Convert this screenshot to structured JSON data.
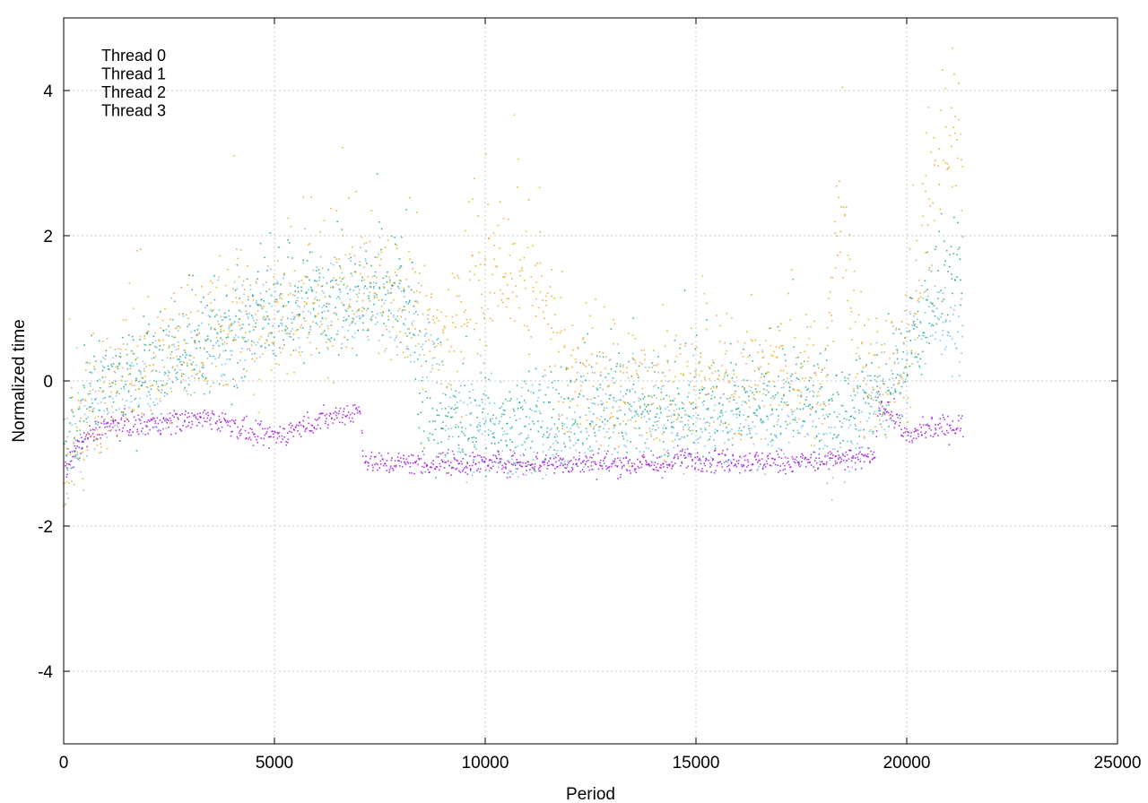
{
  "chart_data": {
    "type": "scatter",
    "title": "",
    "xlabel": "Period",
    "ylabel": "Normalized time",
    "xlim": [
      0,
      25000
    ],
    "ylim": [
      -5,
      5
    ],
    "xticks": [
      0,
      5000,
      10000,
      15000,
      20000,
      25000
    ],
    "yticks": [
      -4,
      -2,
      0,
      2,
      4
    ],
    "xtick_labels": [
      "0",
      "5000",
      "10000",
      "15000",
      "20000",
      "25000"
    ],
    "ytick_labels": [
      "-4",
      "-2",
      "0",
      "2",
      "4"
    ],
    "grid": true,
    "legend_position": "top-left",
    "series": [
      {
        "name": "Thread 0",
        "color": "#9400d3",
        "trend_x": [
          0,
          300,
          900,
          1500,
          2500,
          3500,
          4000,
          4500,
          5000,
          5700,
          6500,
          7000,
          7100,
          7200,
          8000,
          9000,
          10000,
          12000,
          14400,
          14500,
          16000,
          18000,
          19200,
          19300,
          19700,
          20000,
          20200,
          20500,
          21300
        ],
        "trend_y": [
          -1.25,
          -0.9,
          -0.6,
          -0.6,
          -0.55,
          -0.5,
          -0.6,
          -0.75,
          -0.75,
          -0.6,
          -0.45,
          -0.4,
          -1.05,
          -1.12,
          -1.12,
          -1.13,
          -1.12,
          -1.12,
          -1.15,
          -1.05,
          -1.1,
          -1.1,
          -1.05,
          -0.25,
          -0.5,
          -0.8,
          -0.7,
          -0.65,
          -0.6
        ]
      },
      {
        "name": "Thread 1",
        "color": "#009e73",
        "trend_x": [
          0,
          500,
          1000,
          2000,
          3000,
          4000,
          5000,
          6000,
          7000,
          7800,
          8300,
          8400,
          9000,
          10000,
          11500,
          12500,
          14000,
          15000,
          16000,
          17000,
          18000,
          18500,
          19000,
          19500,
          20000,
          20500,
          21000,
          21300
        ],
        "trend_y": [
          -1.1,
          -0.3,
          0.0,
          0.2,
          0.4,
          0.6,
          0.9,
          1.1,
          1.2,
          1.3,
          1.2,
          -0.6,
          -0.7,
          -0.6,
          -0.6,
          -0.4,
          -0.4,
          -0.4,
          -0.3,
          -0.2,
          -0.3,
          -0.4,
          -0.1,
          -0.2,
          0.2,
          1.0,
          1.5,
          1.6
        ]
      },
      {
        "name": "Thread 2",
        "color": "#56b4e9",
        "trend_x": [
          0,
          500,
          1000,
          2000,
          3000,
          4000,
          5000,
          6000,
          7000,
          8000,
          8900,
          9000,
          10000,
          11000,
          12000,
          13000,
          14000,
          15000,
          16000,
          17000,
          18000,
          18500,
          19000,
          19500,
          20000,
          20500,
          21000,
          21300
        ],
        "trend_y": [
          -1.15,
          -0.6,
          -0.3,
          0.0,
          0.3,
          0.6,
          0.9,
          1.0,
          0.9,
          0.8,
          0.4,
          -0.6,
          -0.7,
          -0.7,
          -0.7,
          -0.5,
          -0.6,
          -0.6,
          -0.6,
          -0.5,
          -0.6,
          -0.8,
          -0.3,
          -0.2,
          0.5,
          0.8,
          0.6,
          0.5
        ]
      },
      {
        "name": "Thread 3",
        "color": "#e69f00",
        "trend_x": [
          0,
          500,
          1000,
          2000,
          3000,
          4000,
          5000,
          6000,
          7000,
          8000,
          9000,
          9500,
          10000,
          10500,
          11000,
          11500,
          12000,
          13000,
          14000,
          15000,
          16000,
          17000,
          18000,
          18400,
          18700,
          19000,
          19500,
          20000,
          20500,
          21000,
          21300
        ],
        "trend_y": [
          -1.05,
          -0.5,
          -0.1,
          0.3,
          0.5,
          0.8,
          1.0,
          1.0,
          1.2,
          1.0,
          0.5,
          1.0,
          1.4,
          1.5,
          1.2,
          0.8,
          -0.1,
          -0.2,
          -0.1,
          0.0,
          0.0,
          0.1,
          0.0,
          2.5,
          0.6,
          0.0,
          -0.1,
          0.3,
          2.5,
          3.5,
          3.0
        ]
      }
    ]
  }
}
